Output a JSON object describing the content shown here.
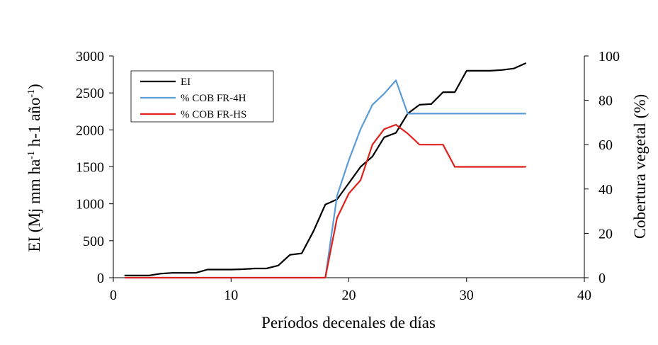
{
  "chart_data": {
    "type": "line",
    "title": "",
    "xlabel": "Períodos decenales de días",
    "ylabel_left": {
      "base": "EI (Mj mm ha",
      "sup1": "-1",
      "mid": " h-1 año",
      "sup2": "-1",
      "end": ")"
    },
    "ylabel_right": "Cobertura vegetal (%)",
    "xlim": [
      0,
      40
    ],
    "ylim_left": [
      0,
      3000
    ],
    "ylim_right": [
      0,
      100
    ],
    "x_ticks": [
      "0",
      "10",
      "20",
      "30",
      "40"
    ],
    "y_left_ticks": [
      "0",
      "500",
      "1000",
      "1500",
      "2000",
      "2500",
      "3000"
    ],
    "y_right_ticks": [
      "0",
      "20",
      "40",
      "60",
      "80",
      "100"
    ],
    "grid": false,
    "legend_position": "top-left",
    "series": [
      {
        "name": "EI",
        "axis": "left",
        "color": "#000000",
        "x": [
          1,
          2,
          3,
          4,
          5,
          6,
          7,
          8,
          9,
          10,
          11,
          12,
          13,
          14,
          15,
          16,
          17,
          18,
          19,
          20,
          21,
          22,
          23,
          24,
          25,
          26,
          27,
          28,
          29,
          30,
          31,
          32,
          33,
          34,
          35
        ],
        "values": [
          30,
          30,
          30,
          55,
          65,
          65,
          65,
          110,
          110,
          110,
          115,
          125,
          125,
          165,
          310,
          330,
          630,
          990,
          1060,
          1280,
          1500,
          1640,
          1900,
          1960,
          2220,
          2340,
          2350,
          2510,
          2510,
          2800,
          2800,
          2800,
          2810,
          2830,
          2900
        ]
      },
      {
        "name": "% COB FR-4H",
        "axis": "right",
        "color": "#5b9bd5",
        "x": [
          1,
          18,
          19,
          20,
          21,
          22,
          23,
          24,
          25,
          26,
          27,
          28,
          29,
          30,
          31,
          32,
          33,
          34,
          35
        ],
        "values": [
          0,
          0,
          37,
          53,
          67,
          78,
          83,
          89,
          74,
          74,
          74,
          74,
          74,
          74,
          74,
          74,
          74,
          74,
          74
        ]
      },
      {
        "name": "% COB FR-HS",
        "axis": "right",
        "color": "#e0201b",
        "x": [
          1,
          18,
          19,
          20,
          21,
          22,
          23,
          24,
          25,
          26,
          27,
          28,
          29,
          30,
          31,
          32,
          33,
          34,
          35
        ],
        "values": [
          0,
          0,
          27,
          38,
          44,
          60,
          67,
          69,
          65,
          60,
          60,
          60,
          50,
          50,
          50,
          50,
          50,
          50,
          50
        ]
      }
    ]
  }
}
